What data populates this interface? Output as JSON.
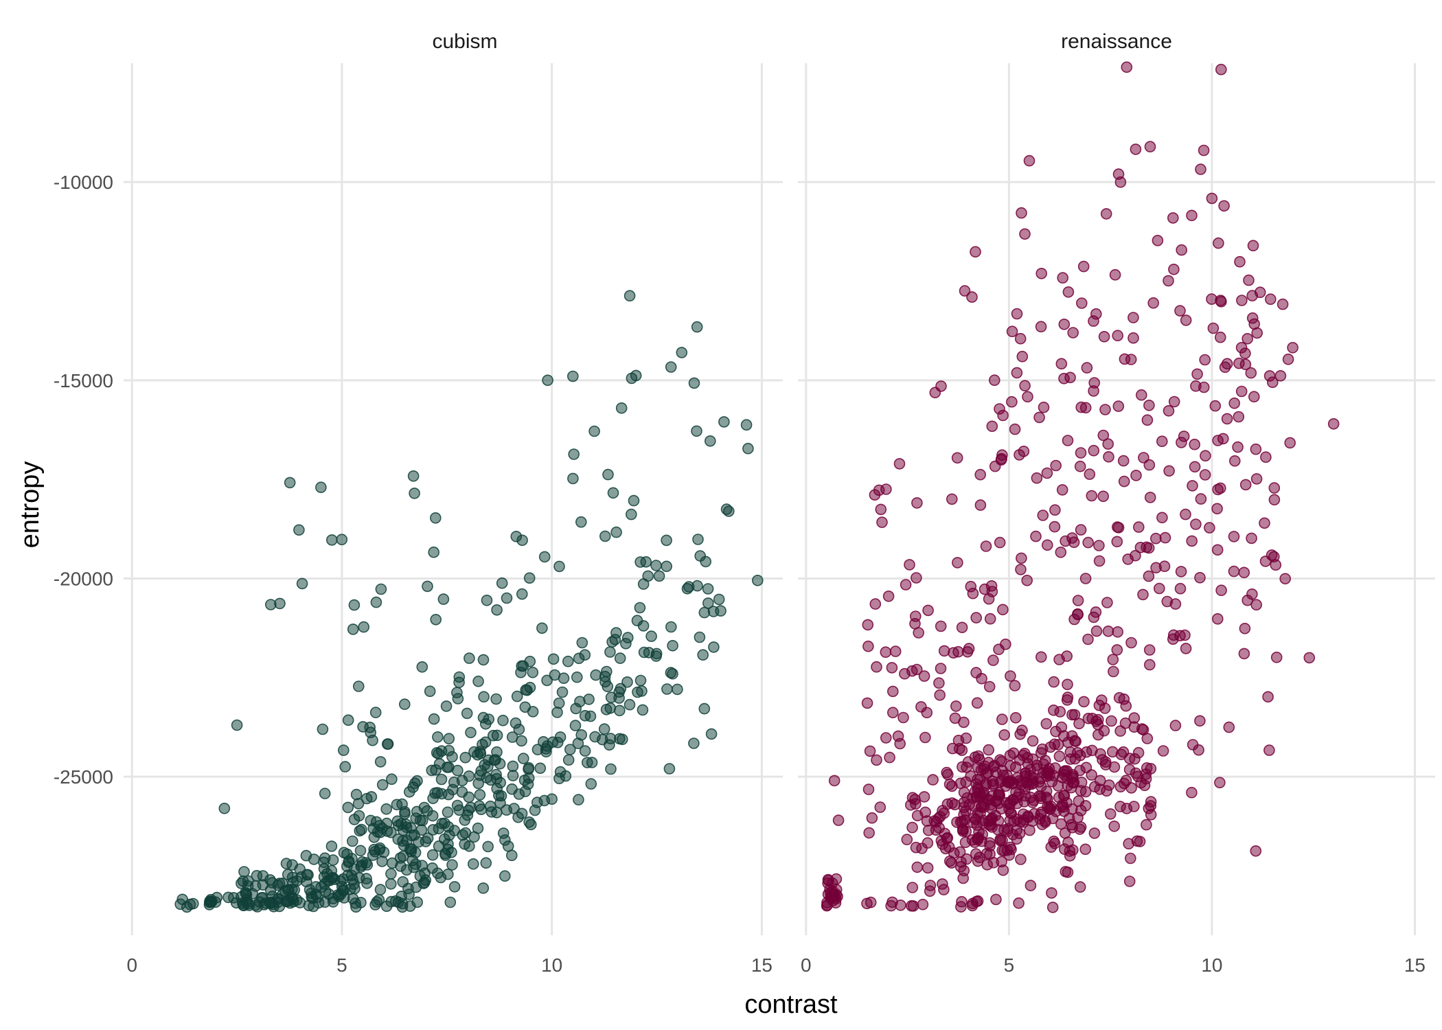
{
  "chart_data": {
    "type": "scatter",
    "xlabel": "contrast",
    "ylabel": "entropy",
    "xlim": [
      -0.2,
      15.5
    ],
    "ylim": [
      -29000,
      -7000
    ],
    "x_ticks": [
      0,
      5,
      10,
      15
    ],
    "y_ticks": [
      -10000,
      -15000,
      -20000,
      -25000
    ],
    "grid": true,
    "colors": {
      "cubism": "#0f4038",
      "renaissance": "#740038"
    },
    "point_opacity": 0.5,
    "panels": [
      {
        "name": "cubism",
        "color": "#0f4038",
        "clusters": [
          {
            "n": 16,
            "x": [
              1.0,
              2.6
            ],
            "ycurve": [
              [
                1.0,
                -28200
              ],
              [
                2.6,
                -28050
              ]
            ],
            "yspread": 60
          },
          {
            "n": 120,
            "x": [
              2.6,
              5.5
            ],
            "ycurve": [
              [
                2.6,
                -28050
              ],
              [
                5.5,
                -27600
              ]
            ],
            "yspread": 380
          },
          {
            "n": 170,
            "x": [
              5.0,
              9.0
            ],
            "ycurve": [
              [
                5.0,
                -27400
              ],
              [
                9.0,
                -25500
              ]
            ],
            "yspread": 1000
          },
          {
            "n": 55,
            "x": [
              9.0,
              13.0
            ],
            "ycurve": [
              [
                9.0,
                -25500
              ],
              [
                13.0,
                -21500
              ]
            ],
            "yspread": 700
          },
          {
            "n": 90,
            "x": [
              4.5,
              9.5
            ],
            "ycurve": [
              [
                4.5,
                -26000
              ],
              [
                9.5,
                -24000
              ]
            ],
            "yspread": 1800
          },
          {
            "n": 80,
            "x": [
              9.0,
              14.0
            ],
            "ycurve": [
              [
                9.0,
                -23500
              ],
              [
                14.0,
                -20000
              ]
            ],
            "yspread": 1600
          },
          {
            "n": 60,
            "x": [
              3.0,
              14.8
            ],
            "ycurve": [
              [
                3.0,
                -22500
              ],
              [
                14.8,
                -17000
              ]
            ],
            "yspread": 2500
          }
        ],
        "points": [
          [
            9.9,
            -15000
          ],
          [
            10.5,
            -14900
          ],
          [
            11.9,
            -14950
          ],
          [
            14.1,
            -16050
          ],
          [
            14.9,
            -20050
          ],
          [
            4.5,
            -17700
          ],
          [
            2.2,
            -25800
          ],
          [
            2.5,
            -23700
          ],
          [
            12.8,
            -24800
          ]
        ]
      },
      {
        "name": "renaissance",
        "color": "#740038",
        "clusters": [
          {
            "n": 24,
            "x": [
              0.5,
              0.8
            ],
            "ycurve": [
              [
                0.5,
                -27900
              ],
              [
                0.8,
                -28000
              ]
            ],
            "yspread": 250
          },
          {
            "n": 300,
            "x": [
              2.5,
              8.5
            ],
            "ycurve": [
              [
                2.5,
                -26400
              ],
              [
                8.5,
                -24600
              ]
            ],
            "yspread": 1100
          },
          {
            "n": 130,
            "x": [
              3.8,
              6.8
            ],
            "ycurve": [
              [
                3.8,
                -25600
              ],
              [
                6.8,
                -25100
              ]
            ],
            "yspread": 550
          },
          {
            "n": 260,
            "x": [
              1.5,
              12.0
            ],
            "ycurve": [
              [
                1.5,
                -23500
              ],
              [
                12.0,
                -17500
              ]
            ],
            "yspread": 3500
          },
          {
            "n": 110,
            "x": [
              4.0,
              11.5
            ],
            "ycurve": [
              [
                4.0,
                -16500
              ],
              [
                11.5,
                -13000
              ]
            ],
            "yspread": 2500
          }
        ],
        "points": [
          [
            7.9,
            -7100
          ],
          [
            9.8,
            -9200
          ],
          [
            7.7,
            -9800
          ],
          [
            7.75,
            -10000
          ],
          [
            10.3,
            -10600
          ],
          [
            7.4,
            -10800
          ],
          [
            13.0,
            -16100
          ],
          [
            12.4,
            -22000
          ],
          [
            9.5,
            -25400
          ],
          [
            0.8,
            -26100
          ],
          [
            0.7,
            -25100
          ],
          [
            1.5,
            -28200
          ]
        ]
      }
    ]
  }
}
